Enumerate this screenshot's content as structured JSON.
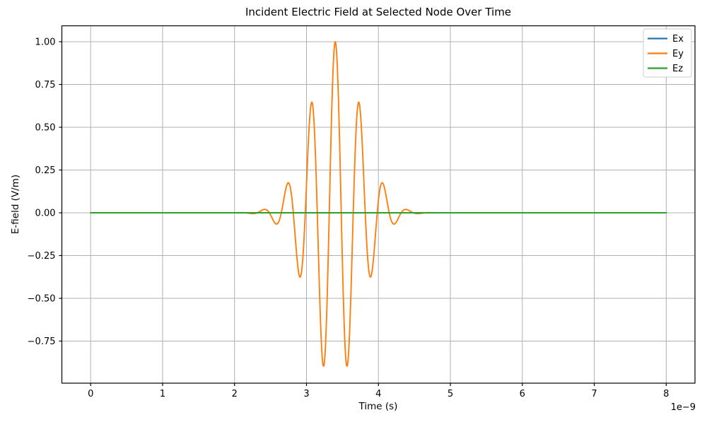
{
  "window": {
    "background": "#ffffff"
  },
  "chart_data": {
    "type": "line",
    "title": "Incident Electric Field at Selected Node Over Time",
    "xlabel": "Time (s)",
    "ylabel": "E-field (V/m)",
    "x_offset_text": "1e−9",
    "x_unit_seconds": 1e-09,
    "xlim_ns": [
      -0.4,
      8.4
    ],
    "ylim": [
      -0.996,
      1.093
    ],
    "x_ticks_ns": [
      0,
      1,
      2,
      3,
      4,
      5,
      6,
      7,
      8
    ],
    "y_ticks": [
      -0.75,
      -0.5,
      -0.25,
      0,
      0.25,
      0.5,
      0.75,
      1
    ],
    "grid": true,
    "grid_color": "#b0b0b0",
    "spine_color": "#000000",
    "legend": {
      "position": "upper right",
      "entries": [
        {
          "label": "Ex",
          "color": "#1f77b4"
        },
        {
          "label": "Ey",
          "color": "#ff7f0e"
        },
        {
          "label": "Ez",
          "color": "#2ca02c"
        }
      ]
    },
    "series": [
      {
        "name": "Ex",
        "color": "#1f77b4",
        "t_start_ns": 0,
        "t_end_ns": 8,
        "waveform": {
          "kind": "constant",
          "value": 0
        }
      },
      {
        "name": "Ey",
        "color": "#ff7f0e",
        "t_start_ns": 0,
        "t_end_ns": 8,
        "waveform": {
          "kind": "gaussian_modulated_cosine",
          "amplitude": 1.0,
          "center_ns": 3.4,
          "sigma_ns": 0.5,
          "frequency_ghz": 3.0
        }
      },
      {
        "name": "Ez",
        "color": "#2ca02c",
        "t_start_ns": 0,
        "t_end_ns": 8,
        "waveform": {
          "kind": "constant",
          "value": 0
        }
      }
    ],
    "ey_extrema_points_ns_value": [
      [
        2.4,
        0.018
      ],
      [
        2.567,
        -0.062
      ],
      [
        2.733,
        0.169
      ],
      [
        2.9,
        -0.368
      ],
      [
        3.067,
        0.641
      ],
      [
        3.233,
        -0.895
      ],
      [
        3.4,
        1.0
      ],
      [
        3.567,
        -0.895
      ],
      [
        3.733,
        0.641
      ],
      [
        3.9,
        -0.368
      ],
      [
        4.067,
        0.169
      ],
      [
        4.233,
        -0.062
      ],
      [
        4.4,
        0.018
      ]
    ]
  }
}
